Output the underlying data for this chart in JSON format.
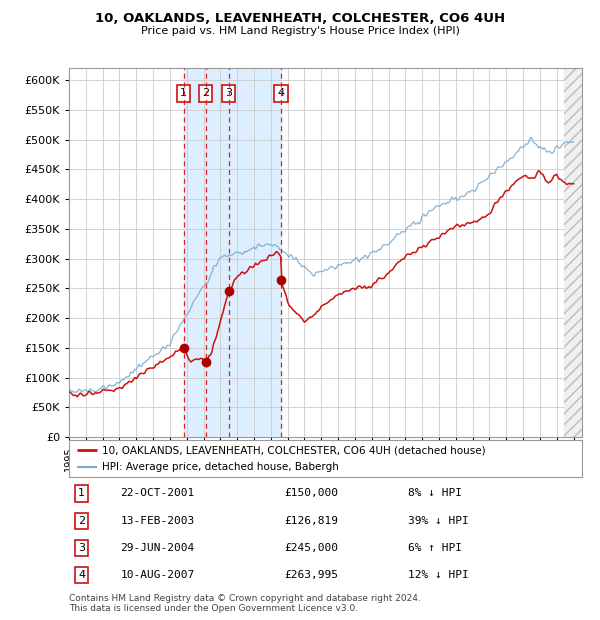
{
  "title": "10, OAKLANDS, LEAVENHEATH, COLCHESTER, CO6 4UH",
  "subtitle": "Price paid vs. HM Land Registry's House Price Index (HPI)",
  "ylim": [
    0,
    620000
  ],
  "yticks": [
    0,
    50000,
    100000,
    150000,
    200000,
    250000,
    300000,
    350000,
    400000,
    450000,
    500000,
    550000,
    600000
  ],
  "xlim_start": 1995.0,
  "xlim_end": 2025.5,
  "sale_dates": [
    2001.81,
    2003.12,
    2004.49,
    2007.61
  ],
  "sale_prices": [
    150000,
    126819,
    245000,
    263995
  ],
  "sale_labels": [
    "1",
    "2",
    "3",
    "4"
  ],
  "hpi_color": "#7aaad0",
  "price_color": "#cc1111",
  "background_color": "#ffffff",
  "grid_color": "#cccccc",
  "sale_region_color": "#ddeeff",
  "legend_price_label": "10, OAKLANDS, LEAVENHEATH, COLCHESTER, CO6 4UH (detached house)",
  "legend_hpi_label": "HPI: Average price, detached house, Babergh",
  "table_rows": [
    [
      "1",
      "22-OCT-2001",
      "£150,000",
      "8% ↓ HPI"
    ],
    [
      "2",
      "13-FEB-2003",
      "£126,819",
      "39% ↓ HPI"
    ],
    [
      "3",
      "29-JUN-2004",
      "£245,000",
      "6% ↑ HPI"
    ],
    [
      "4",
      "10-AUG-2007",
      "£263,995",
      "12% ↓ HPI"
    ]
  ],
  "footnote": "Contains HM Land Registry data © Crown copyright and database right 2024.\nThis data is licensed under the Open Government Licence v3.0.",
  "hatch_region_start": 2024.42,
  "hatch_region_end": 2025.5
}
